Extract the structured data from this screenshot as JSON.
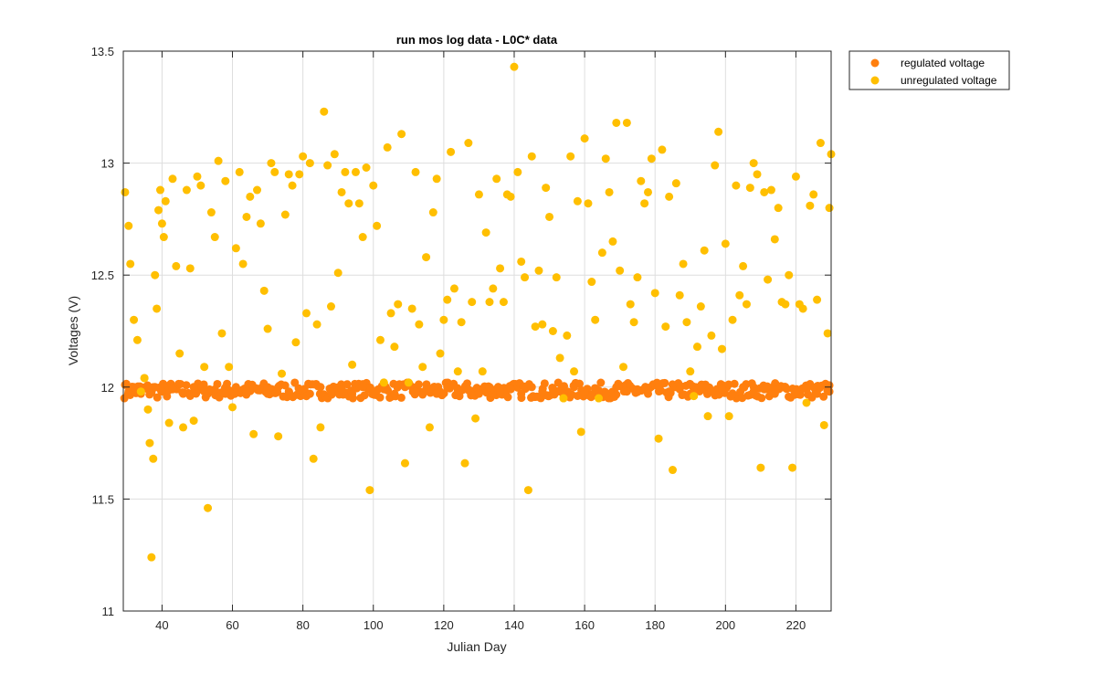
{
  "chart_data": {
    "type": "scatter",
    "title": "run mos log data - L0C* data",
    "xlabel": "Julian Day",
    "ylabel": "Voltages (V)",
    "xlim": [
      29,
      230
    ],
    "ylim": [
      11,
      13.5
    ],
    "xticks": [
      40,
      60,
      80,
      100,
      120,
      140,
      160,
      180,
      200,
      220
    ],
    "yticks": [
      11,
      11.5,
      12,
      12.5,
      13,
      13.5
    ],
    "xtick_labels": [
      "40",
      "60",
      "80",
      "100",
      "120",
      "140",
      "160",
      "180",
      "200",
      "220"
    ],
    "ytick_labels": [
      "11",
      "11.5",
      "12",
      "12.5",
      "13",
      "13.5"
    ],
    "grid": true,
    "legend_position": "outside-top-right",
    "series": [
      {
        "name": "regulated voltage",
        "color": "#ff7f0e",
        "x_range": [
          29,
          230
        ],
        "y_band": [
          11.95,
          12.02
        ],
        "typical_y": 11.98,
        "points": [
          [
            29.5,
            12.01
          ],
          [
            30.5,
            11.98
          ],
          [
            32,
            12.0
          ],
          [
            34,
            11.97
          ],
          [
            36,
            11.99
          ],
          [
            38,
            12.0
          ],
          [
            40,
            11.98
          ],
          [
            43,
            11.99
          ],
          [
            46,
            11.97
          ],
          [
            49,
            12.0
          ],
          [
            52,
            11.98
          ],
          [
            55,
            11.99
          ],
          [
            58,
            11.97
          ],
          [
            61,
            12.0
          ],
          [
            64,
            11.98
          ],
          [
            67,
            11.99
          ],
          [
            70,
            11.97
          ],
          [
            73,
            12.0
          ],
          [
            76,
            11.98
          ],
          [
            79,
            11.99
          ],
          [
            82,
            11.97
          ],
          [
            85,
            12.0
          ],
          [
            88,
            11.98
          ],
          [
            91,
            11.99
          ],
          [
            94,
            11.97
          ],
          [
            97,
            12.0
          ],
          [
            100,
            11.98
          ],
          [
            103,
            11.99
          ],
          [
            106,
            11.97
          ],
          [
            109,
            12.0
          ],
          [
            112,
            11.98
          ],
          [
            115,
            11.99
          ],
          [
            118,
            11.97
          ],
          [
            121,
            12.0
          ],
          [
            124,
            11.98
          ],
          [
            127,
            11.99
          ],
          [
            130,
            11.97
          ],
          [
            133,
            12.0
          ],
          [
            136,
            11.98
          ],
          [
            139,
            11.99
          ],
          [
            142,
            11.97
          ],
          [
            145,
            12.0
          ],
          [
            148,
            11.98
          ],
          [
            151,
            11.99
          ],
          [
            154,
            11.97
          ],
          [
            157,
            12.0
          ],
          [
            160,
            11.98
          ],
          [
            163,
            11.99
          ],
          [
            166,
            11.97
          ],
          [
            169,
            12.0
          ],
          [
            172,
            11.98
          ],
          [
            175,
            11.99
          ],
          [
            178,
            11.97
          ],
          [
            181,
            12.0
          ],
          [
            184,
            11.98
          ],
          [
            187,
            11.99
          ],
          [
            190,
            11.97
          ],
          [
            193,
            12.0
          ],
          [
            196,
            11.98
          ],
          [
            199,
            11.99
          ],
          [
            202,
            11.97
          ],
          [
            205,
            12.0
          ],
          [
            208,
            11.98
          ],
          [
            211,
            11.99
          ],
          [
            214,
            11.97
          ],
          [
            217,
            12.0
          ],
          [
            220,
            11.98
          ],
          [
            223,
            11.99
          ],
          [
            226,
            11.97
          ],
          [
            229.5,
            11.98
          ]
        ]
      },
      {
        "name": "unregulated voltage",
        "color": "#ffbf00",
        "x_range": [
          29,
          230
        ],
        "y_range": [
          11.24,
          13.43
        ],
        "points": [
          [
            29.5,
            12.87
          ],
          [
            30.5,
            12.72
          ],
          [
            31,
            12.55
          ],
          [
            32,
            12.3
          ],
          [
            33,
            12.21
          ],
          [
            34,
            11.98
          ],
          [
            35,
            12.04
          ],
          [
            36,
            11.9
          ],
          [
            36.5,
            11.75
          ],
          [
            37,
            11.24
          ],
          [
            37.5,
            11.68
          ],
          [
            38,
            12.5
          ],
          [
            38.5,
            12.35
          ],
          [
            39,
            12.79
          ],
          [
            39.5,
            12.88
          ],
          [
            40,
            12.73
          ],
          [
            40.5,
            12.67
          ],
          [
            41,
            12.83
          ],
          [
            42,
            11.84
          ],
          [
            43,
            12.93
          ],
          [
            44,
            12.54
          ],
          [
            45,
            12.15
          ],
          [
            46,
            11.82
          ],
          [
            47,
            12.88
          ],
          [
            48,
            12.53
          ],
          [
            49,
            11.85
          ],
          [
            50,
            12.94
          ],
          [
            51,
            12.9
          ],
          [
            52,
            12.09
          ],
          [
            53,
            11.46
          ],
          [
            54,
            12.78
          ],
          [
            55,
            12.67
          ],
          [
            56,
            13.01
          ],
          [
            57,
            12.24
          ],
          [
            58,
            12.92
          ],
          [
            59,
            12.09
          ],
          [
            60,
            11.91
          ],
          [
            61,
            12.62
          ],
          [
            62,
            12.96
          ],
          [
            63,
            12.55
          ],
          [
            64,
            12.76
          ],
          [
            65,
            12.85
          ],
          [
            66,
            11.79
          ],
          [
            67,
            12.88
          ],
          [
            68,
            12.73
          ],
          [
            69,
            12.43
          ],
          [
            70,
            12.26
          ],
          [
            71,
            13.0
          ],
          [
            72,
            12.96
          ],
          [
            73,
            11.78
          ],
          [
            74,
            12.06
          ],
          [
            75,
            12.77
          ],
          [
            76,
            12.95
          ],
          [
            77,
            12.9
          ],
          [
            78,
            12.2
          ],
          [
            79,
            12.95
          ],
          [
            80,
            13.03
          ],
          [
            81,
            12.33
          ],
          [
            82,
            13.0
          ],
          [
            83,
            11.68
          ],
          [
            84,
            12.28
          ],
          [
            85,
            11.82
          ],
          [
            86,
            13.23
          ],
          [
            87,
            12.99
          ],
          [
            88,
            12.36
          ],
          [
            89,
            13.04
          ],
          [
            90,
            12.51
          ],
          [
            91,
            12.87
          ],
          [
            92,
            12.96
          ],
          [
            93,
            12.82
          ],
          [
            94,
            12.1
          ],
          [
            95,
            12.96
          ],
          [
            96,
            12.82
          ],
          [
            97,
            12.67
          ],
          [
            98,
            12.98
          ],
          [
            99,
            11.54
          ],
          [
            100,
            12.9
          ],
          [
            101,
            12.72
          ],
          [
            102,
            12.21
          ],
          [
            103,
            12.02
          ],
          [
            104,
            13.07
          ],
          [
            105,
            12.33
          ],
          [
            106,
            12.18
          ],
          [
            107,
            12.37
          ],
          [
            108,
            13.13
          ],
          [
            109,
            11.66
          ],
          [
            110,
            12.02
          ],
          [
            111,
            12.35
          ],
          [
            112,
            12.96
          ],
          [
            113,
            12.28
          ],
          [
            114,
            12.09
          ],
          [
            115,
            12.58
          ],
          [
            116,
            11.82
          ],
          [
            117,
            12.78
          ],
          [
            118,
            12.93
          ],
          [
            119,
            12.15
          ],
          [
            120,
            12.3
          ],
          [
            121,
            12.39
          ],
          [
            122,
            13.05
          ],
          [
            123,
            12.44
          ],
          [
            124,
            12.07
          ],
          [
            125,
            12.29
          ],
          [
            126,
            11.66
          ],
          [
            127,
            13.09
          ],
          [
            128,
            12.38
          ],
          [
            129,
            11.86
          ],
          [
            130,
            12.86
          ],
          [
            131,
            12.07
          ],
          [
            132,
            12.69
          ],
          [
            133,
            12.38
          ],
          [
            134,
            12.44
          ],
          [
            135,
            12.93
          ],
          [
            136,
            12.53
          ],
          [
            137,
            12.38
          ],
          [
            138,
            12.86
          ],
          [
            139,
            12.85
          ],
          [
            140,
            13.43
          ],
          [
            141,
            12.96
          ],
          [
            142,
            12.56
          ],
          [
            143,
            12.49
          ],
          [
            144,
            11.54
          ],
          [
            145,
            13.03
          ],
          [
            146,
            12.27
          ],
          [
            147,
            12.52
          ],
          [
            148,
            12.28
          ],
          [
            149,
            12.89
          ],
          [
            150,
            12.76
          ],
          [
            151,
            12.25
          ],
          [
            152,
            12.49
          ],
          [
            153,
            12.13
          ],
          [
            154,
            11.95
          ],
          [
            155,
            12.23
          ],
          [
            156,
            13.03
          ],
          [
            157,
            12.07
          ],
          [
            158,
            12.83
          ],
          [
            159,
            11.8
          ],
          [
            160,
            13.11
          ],
          [
            161,
            12.82
          ],
          [
            162,
            12.47
          ],
          [
            163,
            12.3
          ],
          [
            164,
            11.95
          ],
          [
            165,
            12.6
          ],
          [
            166,
            13.02
          ],
          [
            167,
            12.87
          ],
          [
            168,
            12.65
          ],
          [
            169,
            13.18
          ],
          [
            170,
            12.52
          ],
          [
            171,
            12.09
          ],
          [
            172,
            13.18
          ],
          [
            173,
            12.37
          ],
          [
            174,
            12.29
          ],
          [
            175,
            12.49
          ],
          [
            176,
            12.92
          ],
          [
            177,
            12.82
          ],
          [
            178,
            12.87
          ],
          [
            179,
            13.02
          ],
          [
            180,
            12.42
          ],
          [
            181,
            11.77
          ],
          [
            182,
            13.06
          ],
          [
            183,
            12.27
          ],
          [
            184,
            12.85
          ],
          [
            185,
            11.63
          ],
          [
            186,
            12.91
          ],
          [
            187,
            12.41
          ],
          [
            188,
            12.55
          ],
          [
            189,
            12.29
          ],
          [
            190,
            12.07
          ],
          [
            191,
            11.96
          ],
          [
            192,
            12.18
          ],
          [
            193,
            12.36
          ],
          [
            194,
            12.61
          ],
          [
            195,
            11.87
          ],
          [
            196,
            12.23
          ],
          [
            197,
            12.99
          ],
          [
            198,
            13.14
          ],
          [
            199,
            12.17
          ],
          [
            200,
            12.64
          ],
          [
            201,
            11.87
          ],
          [
            202,
            12.3
          ],
          [
            203,
            12.9
          ],
          [
            204,
            12.41
          ],
          [
            205,
            12.54
          ],
          [
            206,
            12.37
          ],
          [
            207,
            12.89
          ],
          [
            208,
            13.0
          ],
          [
            209,
            12.95
          ],
          [
            210,
            11.64
          ],
          [
            211,
            12.87
          ],
          [
            212,
            12.48
          ],
          [
            213,
            12.88
          ],
          [
            214,
            12.66
          ],
          [
            215,
            12.8
          ],
          [
            216,
            12.38
          ],
          [
            217,
            12.37
          ],
          [
            218,
            12.5
          ],
          [
            219,
            11.64
          ],
          [
            220,
            12.94
          ],
          [
            221,
            12.37
          ],
          [
            222,
            12.35
          ],
          [
            223,
            11.93
          ],
          [
            224,
            12.81
          ],
          [
            225,
            12.86
          ],
          [
            226,
            12.39
          ],
          [
            227,
            13.09
          ],
          [
            228,
            11.83
          ],
          [
            229,
            12.24
          ],
          [
            229.5,
            12.8
          ],
          [
            230,
            13.04
          ]
        ]
      }
    ]
  },
  "colors": {
    "axes_background": "#ffffff",
    "grid": "#dedede",
    "axis_line": "#262626",
    "regulated": "#ff7f0e",
    "unregulated": "#ffbf00"
  }
}
